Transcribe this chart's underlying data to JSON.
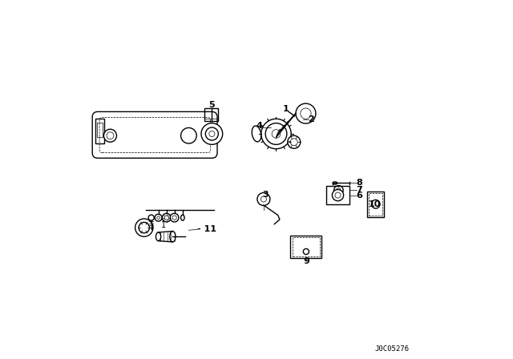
{
  "background_color": "#ffffff",
  "line_color": "#000000",
  "fig_width": 6.4,
  "fig_height": 4.48,
  "dpi": 100,
  "watermark": "J0C05276"
}
